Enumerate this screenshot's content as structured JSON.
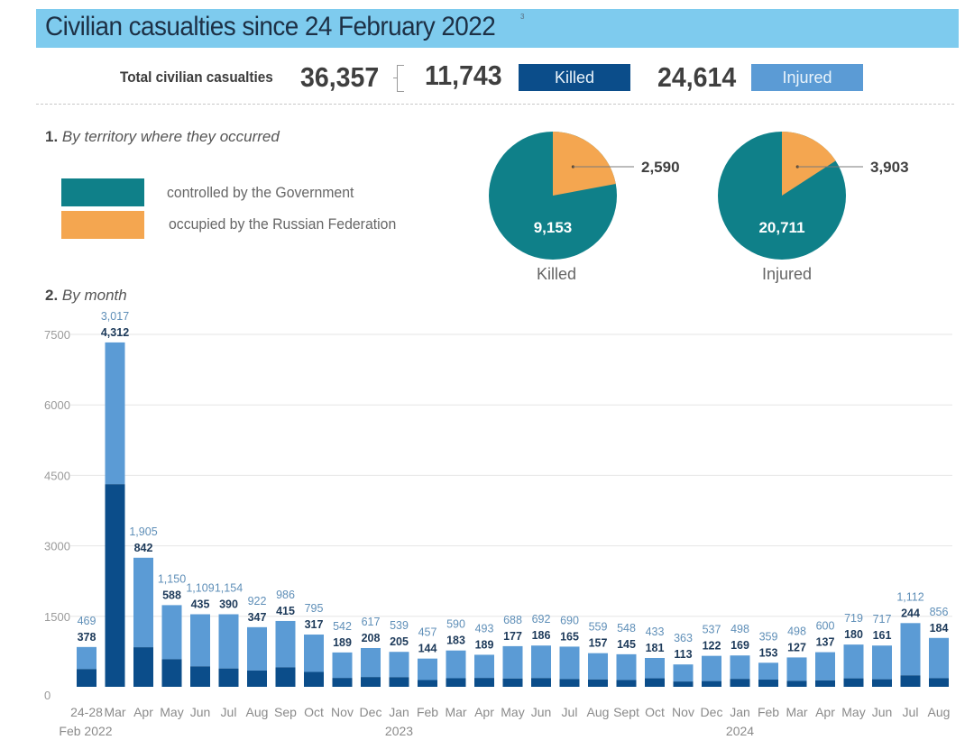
{
  "header": {
    "title": "Civilian casualties since 24 February 2022",
    "footnote_marker": "3"
  },
  "totals": {
    "label": "Total civilian casualties",
    "total": "36,357",
    "killed": "11,743",
    "killed_label": "Killed",
    "injured": "24,614",
    "injured_label": "Injured"
  },
  "section1": {
    "number": "1.",
    "title": "By territory where they occurred",
    "legend": [
      {
        "label": "controlled by the Government",
        "color": "#0f8089"
      },
      {
        "label": "occupied by the Russian Federation",
        "color": "#f4a650"
      }
    ]
  },
  "section2": {
    "number": "2.",
    "title": "By month"
  },
  "colors": {
    "banner": "#7ecbee",
    "killed": "#0b4d8a",
    "injured": "#5b9bd5",
    "government": "#0f8089",
    "occupied": "#f4a650"
  },
  "chart_data": [
    {
      "type": "pie",
      "title": "Killed",
      "slices": [
        {
          "label": "controlled by the Government",
          "value": 9153,
          "display": "9,153"
        },
        {
          "label": "occupied by the Russian Federation",
          "value": 2590,
          "display": "2,590"
        }
      ]
    },
    {
      "type": "pie",
      "title": "Injured",
      "slices": [
        {
          "label": "controlled by the Government",
          "value": 20711,
          "display": "20,711"
        },
        {
          "label": "occupied by the Russian Federation",
          "value": 3903,
          "display": "3,903"
        }
      ]
    },
    {
      "type": "bar",
      "stacked": true,
      "title": "By month",
      "ylim": [
        0,
        7500
      ],
      "yticks": [
        0,
        1500,
        3000,
        4500,
        6000,
        7500
      ],
      "grid": true,
      "categories": [
        "24-28",
        "Mar",
        "Apr",
        "May",
        "Jun",
        "Jul",
        "Aug",
        "Sep",
        "Oct",
        "Nov",
        "Dec",
        "Jan",
        "Feb",
        "Mar",
        "Apr",
        "May",
        "Jun",
        "Jul",
        "Aug",
        "Sept",
        "Oct",
        "Nov",
        "Dec",
        "Jan",
        "Feb",
        "Mar",
        "Apr",
        "May",
        "Jun",
        "Jul",
        "Aug"
      ],
      "category_sublabels": {
        "0": "Feb 2022",
        "11": "2023",
        "23": "2024"
      },
      "series": [
        {
          "name": "Killed",
          "values": [
            378,
            4312,
            842,
            588,
            435,
            390,
            347,
            415,
            317,
            189,
            208,
            205,
            144,
            183,
            189,
            177,
            186,
            165,
            157,
            145,
            181,
            113,
            122,
            169,
            153,
            127,
            137,
            180,
            161,
            244,
            184
          ],
          "labels": [
            "378",
            "4,312",
            "842",
            "588",
            "435",
            "390",
            "347",
            "415",
            "317",
            "189",
            "208",
            "205",
            "144",
            "183",
            "189",
            "177",
            "186",
            "165",
            "157",
            "145",
            "181",
            "113",
            "122",
            "169",
            "153",
            "127",
            "137",
            "180",
            "161",
            "244",
            "184"
          ]
        },
        {
          "name": "Injured",
          "values": [
            469,
            3017,
            1905,
            1150,
            1109,
            1154,
            922,
            986,
            795,
            542,
            617,
            539,
            457,
            590,
            493,
            688,
            692,
            690,
            559,
            548,
            433,
            363,
            537,
            498,
            359,
            498,
            600,
            719,
            717,
            1112,
            856
          ],
          "labels": [
            "469",
            "3,017",
            "1,905",
            "1,150",
            "1,109",
            "1,154",
            "922",
            "986",
            "795",
            "542",
            "617",
            "539",
            "457",
            "590",
            "493",
            "688",
            "692",
            "690",
            "559",
            "548",
            "433",
            "363",
            "537",
            "498",
            "359",
            "498",
            "600",
            "719",
            "717",
            "1,112",
            "856"
          ]
        }
      ]
    }
  ]
}
